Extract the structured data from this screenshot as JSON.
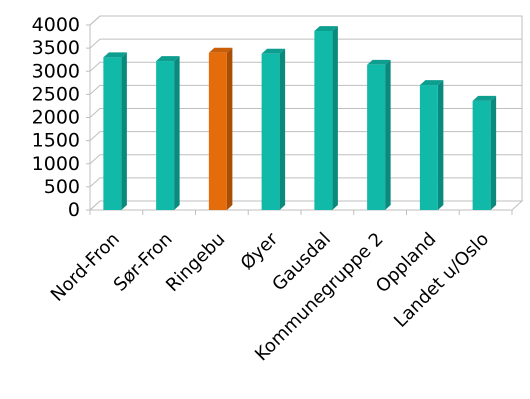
{
  "chart_data": {
    "type": "bar",
    "title": "",
    "xlabel": "",
    "ylabel": "",
    "ylim": [
      0,
      4000
    ],
    "yticks": [
      0,
      500,
      1000,
      1500,
      2000,
      2500,
      3000,
      3500,
      4000
    ],
    "grid": true,
    "legend": "none",
    "categories": [
      "Nord-Fron",
      "Sør-Fron",
      "Ringebu",
      "Øyer",
      "Gausdal",
      "Kommunegruppe 2",
      "Oppland",
      "Landet u/Oslo"
    ],
    "values": [
      3300,
      3220,
      3400,
      3380,
      3870,
      3140,
      2700,
      2360
    ],
    "highlight": "Ringebu",
    "colors": {
      "bar": "#10B9A8",
      "bar_side": "#0A8A7C",
      "bar_top": "#0E9E90",
      "highlight": "#E46C0A",
      "highlight_side": "#A84E06",
      "highlight_top": "#C85F08",
      "grid": "#BFBFBF",
      "axis_text": "#000000"
    }
  }
}
